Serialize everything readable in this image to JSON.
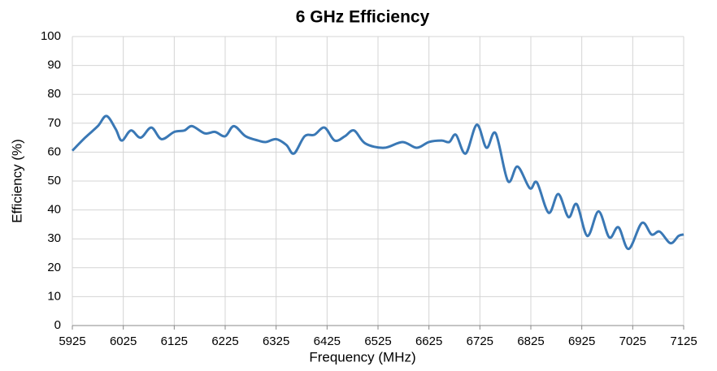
{
  "chart_data": {
    "type": "line",
    "title": "6 GHz Efficiency",
    "xlabel": "Frequency (MHz)",
    "ylabel": "Efficiency (%)",
    "x": [
      5925,
      5950,
      5975,
      5992,
      6010,
      6022,
      6040,
      6059,
      6080,
      6100,
      6125,
      6145,
      6160,
      6185,
      6205,
      6225,
      6242,
      6265,
      6290,
      6305,
      6325,
      6345,
      6360,
      6381,
      6400,
      6420,
      6440,
      6460,
      6478,
      6500,
      6537,
      6573,
      6601,
      6625,
      6650,
      6665,
      6678,
      6697,
      6719,
      6738,
      6756,
      6780,
      6799,
      6823,
      6837,
      6860,
      6879,
      6899,
      6915,
      6936,
      6958,
      6979,
      6997,
      7017,
      7043,
      7062,
      7078,
      7099,
      7115,
      7125
    ],
    "series": [
      {
        "name": "Efficiency",
        "color": "#3a78b5",
        "values": [
          60.5,
          65,
          69,
          72.5,
          68,
          64,
          67.5,
          65,
          68.5,
          64.5,
          67,
          67.5,
          69,
          66.5,
          67,
          65.5,
          69,
          65.5,
          64,
          63.5,
          64.5,
          62.5,
          59.5,
          65.5,
          66,
          68.5,
          64,
          65.5,
          67.5,
          63,
          61.5,
          63.5,
          61.5,
          63.5,
          64,
          63.5,
          66,
          59.5,
          69.5,
          61.5,
          66.5,
          50,
          55,
          47.5,
          49.5,
          39,
          45.5,
          37.5,
          42,
          31,
          39.5,
          30.5,
          34,
          26.5,
          35.5,
          31.5,
          32.5,
          28.5,
          31,
          31.5
        ]
      }
    ],
    "xlim": [
      5925,
      7125
    ],
    "xticks": [
      5925,
      6025,
      6125,
      6225,
      6325,
      6425,
      6525,
      6625,
      6725,
      6825,
      6925,
      7025,
      7125
    ],
    "ylim": [
      0,
      100
    ],
    "yticks": [
      0,
      10,
      20,
      30,
      40,
      50,
      60,
      70,
      80,
      90,
      100
    ],
    "grid": true
  }
}
